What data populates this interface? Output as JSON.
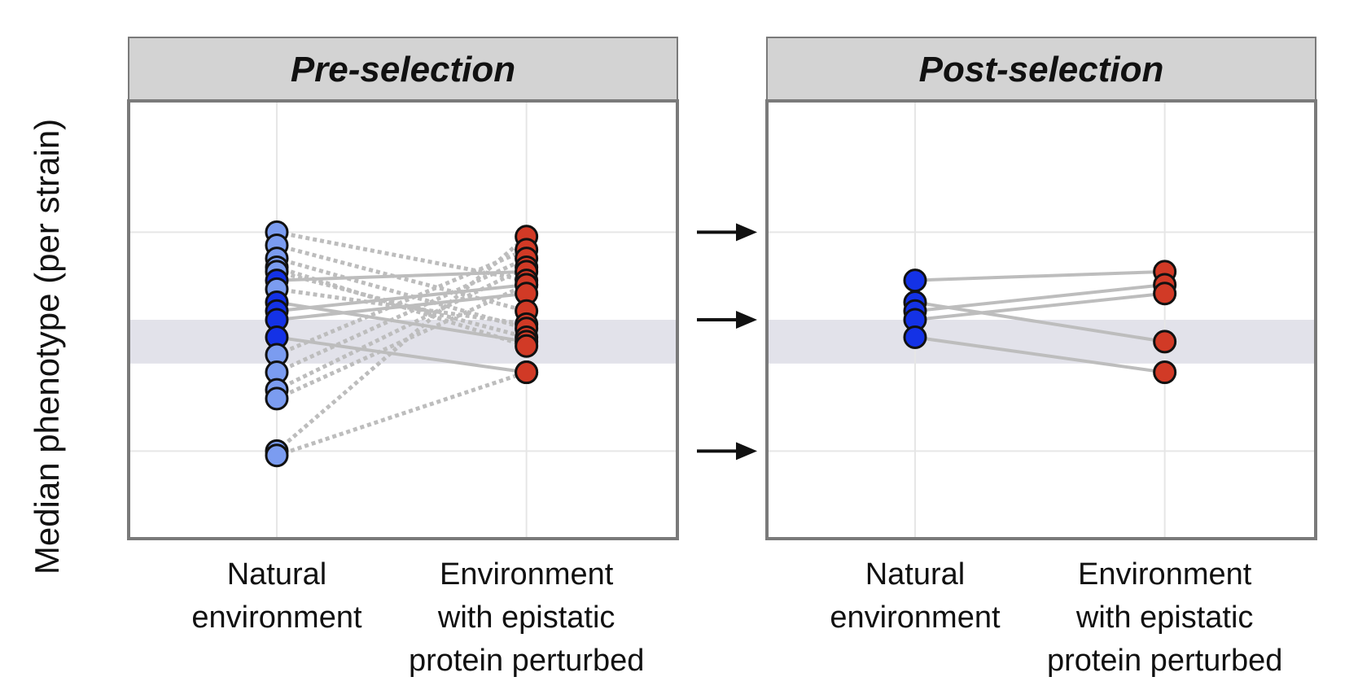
{
  "figure": {
    "ylabel": "Median phenotype (per strain)"
  },
  "colors": {
    "natural_light": "#7b9cf0",
    "natural_selected": "#1432e6",
    "perturbed": "#d13a26",
    "line_gray": "#bdbdbd",
    "band": "#e2e2ea",
    "strip_bg": "#d3d3d3",
    "frame": "#7a7a7a",
    "grid": "#e6e6e6"
  },
  "chart_data": [
    {
      "type": "scatter",
      "title": "Pre-selection",
      "categories": [
        "Natural\nenvironment",
        "Environment\nwith epistatic\nprotein perturbed"
      ],
      "ylim": [
        0,
        10
      ],
      "yticks": [
        2,
        5,
        7
      ],
      "grid": true,
      "band": [
        4,
        5
      ],
      "pairs": [
        {
          "natural": 7.0,
          "perturbed": 5.9,
          "selected": false
        },
        {
          "natural": 6.7,
          "perturbed": 5.2,
          "selected": false
        },
        {
          "natural": 6.4,
          "perturbed": 4.8,
          "selected": false
        },
        {
          "natural": 6.2,
          "perturbed": 4.4,
          "selected": false
        },
        {
          "natural": 6.1,
          "perturbed": 4.6,
          "selected": false
        },
        {
          "natural": 5.7,
          "perturbed": 4.9,
          "selected": false
        },
        {
          "natural": 4.2,
          "perturbed": 6.6,
          "selected": false
        },
        {
          "natural": 3.8,
          "perturbed": 6.4,
          "selected": false
        },
        {
          "natural": 3.4,
          "perturbed": 6.2,
          "selected": false
        },
        {
          "natural": 3.2,
          "perturbed": 5.8,
          "selected": false
        },
        {
          "natural": 2.0,
          "perturbed": 6.9,
          "selected": false
        },
        {
          "natural": 1.9,
          "perturbed": 3.8,
          "selected": false
        },
        {
          "natural": 5.9,
          "perturbed": 6.1,
          "selected": true
        },
        {
          "natural": 5.4,
          "perturbed": 4.5,
          "selected": true
        },
        {
          "natural": 5.2,
          "perturbed": 5.8,
          "selected": true
        },
        {
          "natural": 5.0,
          "perturbed": 5.6,
          "selected": true
        },
        {
          "natural": 4.6,
          "perturbed": 3.8,
          "selected": true
        }
      ]
    },
    {
      "type": "scatter",
      "title": "Post-selection",
      "categories": [
        "Natural\nenvironment",
        "Environment\nwith epistatic\nprotein perturbed"
      ],
      "ylim": [
        0,
        10
      ],
      "yticks": [
        2,
        5,
        7
      ],
      "grid": true,
      "band": [
        4,
        5
      ],
      "pairs": [
        {
          "natural": 5.9,
          "perturbed": 6.1,
          "selected": true
        },
        {
          "natural": 5.4,
          "perturbed": 4.5,
          "selected": true
        },
        {
          "natural": 5.2,
          "perturbed": 5.8,
          "selected": true
        },
        {
          "natural": 5.0,
          "perturbed": 5.6,
          "selected": true
        },
        {
          "natural": 4.6,
          "perturbed": 3.8,
          "selected": true
        }
      ]
    }
  ],
  "arrows": {
    "levels": [
      7,
      5,
      2
    ],
    "icon": "right-arrow-icon"
  }
}
